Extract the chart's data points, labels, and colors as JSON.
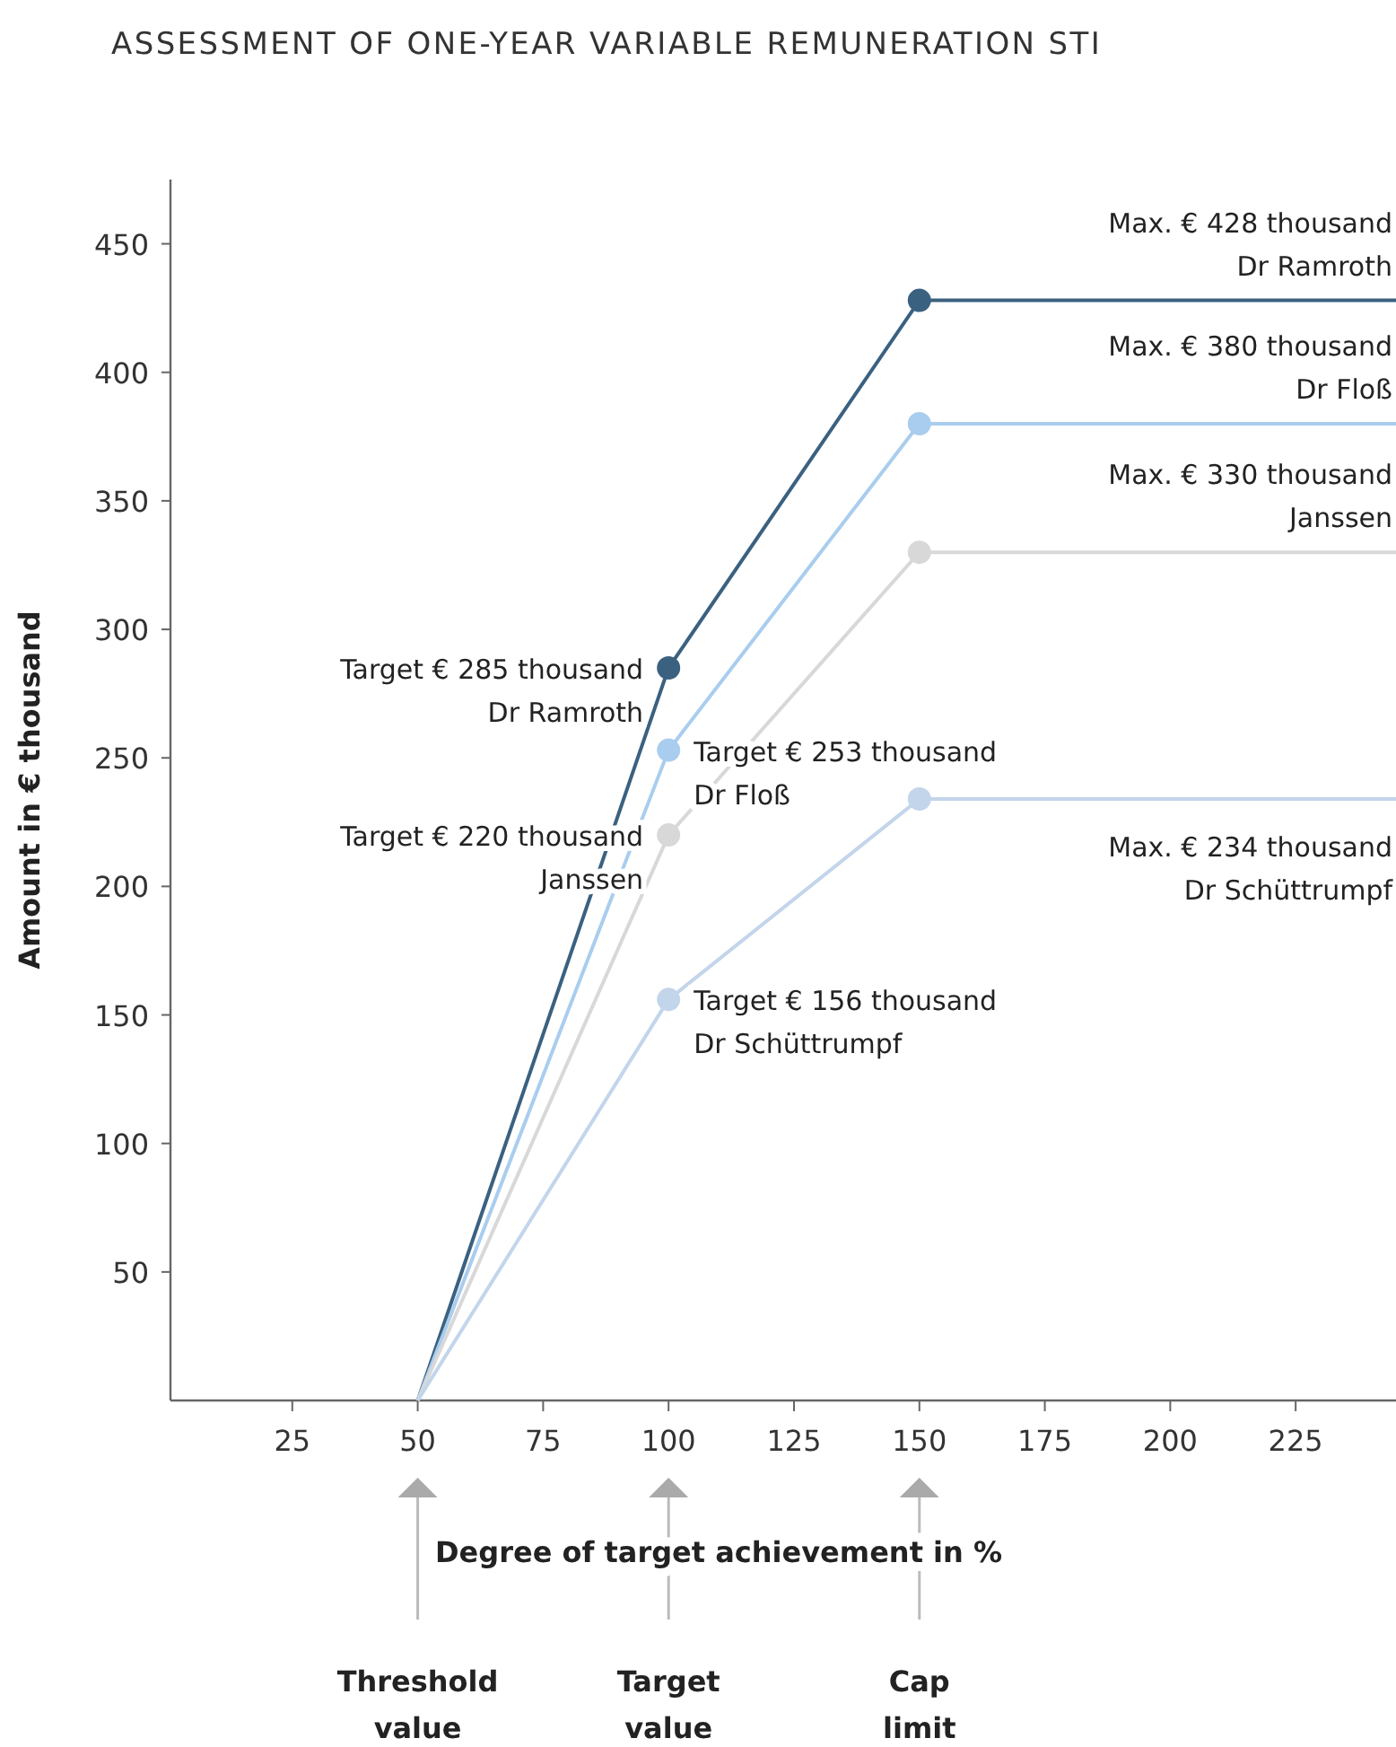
{
  "chart_data": {
    "type": "line",
    "title": "ASSESSMENT OF ONE-YEAR VARIABLE REMUNERATION STI",
    "xlabel": "Degree of target achievement in %",
    "ylabel": "Amount in € thousand",
    "xlim": [
      0,
      245
    ],
    "ylim": [
      0,
      475
    ],
    "xticks": [
      25,
      50,
      75,
      100,
      125,
      150,
      175,
      200,
      225
    ],
    "yticks": [
      50,
      100,
      150,
      200,
      250,
      300,
      350,
      400,
      450
    ],
    "grid": false,
    "marker": "circle",
    "line_style": "solid",
    "series": [
      {
        "color": "#3b6180",
        "x": [
          50,
          100,
          150,
          245
        ],
        "values": [
          0,
          285,
          428,
          428
        ]
      },
      {
        "color": "#a9cdee",
        "x": [
          50,
          100,
          150,
          245
        ],
        "values": [
          0,
          253,
          380,
          380
        ]
      },
      {
        "color": "#d8d8d8",
        "x": [
          50,
          100,
          150,
          245
        ],
        "values": [
          0,
          220,
          330,
          330
        ]
      },
      {
        "color": "#c3d5ea",
        "x": [
          50,
          100,
          150,
          245
        ],
        "values": [
          0,
          156,
          234,
          234
        ]
      }
    ],
    "annotations": [
      "Target € 285 thousand\nDr Ramroth",
      "Target € 253 thousand\nDr Floß",
      "Target € 220 thousand\nJanssen",
      "Target € 156 thousand\nDr Schüttrumpf",
      "Max. € 428 thousand\nDr Ramroth",
      "Max. € 380 thousand\nDr Floß",
      "Max. € 330 thousand\nJanssen",
      "Max. € 234 thousand\nDr Schüttrumpf",
      "Threshold\nvalue",
      "Target\nvalue",
      "Cap\nlimit"
    ]
  }
}
